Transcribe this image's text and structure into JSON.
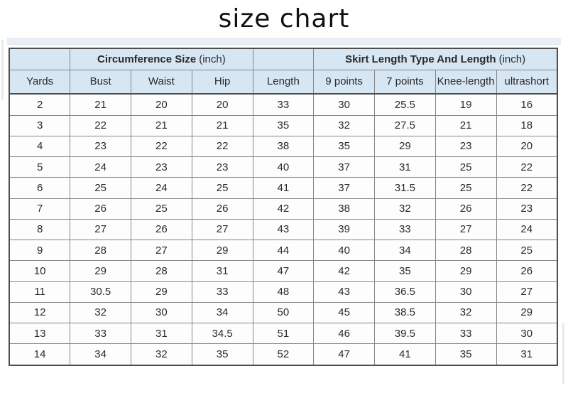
{
  "chart_data": {
    "type": "table",
    "title": "size chart",
    "group_headers": [
      {
        "title": "Circumference Size",
        "unit": "(inch)",
        "span": 3
      },
      {
        "title": "Skirt Length Type And Length",
        "unit": "(inch)",
        "span": 4
      }
    ],
    "columns": [
      "Yards",
      "Bust",
      "Waist",
      "Hip",
      "Length",
      "9 points",
      "7 points",
      "Knee-length",
      "ultrashort"
    ],
    "rows": [
      [
        "2",
        "21",
        "20",
        "20",
        "33",
        "30",
        "25.5",
        "19",
        "16"
      ],
      [
        "3",
        "22",
        "21",
        "21",
        "35",
        "32",
        "27.5",
        "21",
        "18"
      ],
      [
        "4",
        "23",
        "22",
        "22",
        "38",
        "35",
        "29",
        "23",
        "20"
      ],
      [
        "5",
        "24",
        "23",
        "23",
        "40",
        "37",
        "31",
        "25",
        "22"
      ],
      [
        "6",
        "25",
        "24",
        "25",
        "41",
        "37",
        "31.5",
        "25",
        "22"
      ],
      [
        "7",
        "26",
        "25",
        "26",
        "42",
        "38",
        "32",
        "26",
        "23"
      ],
      [
        "8",
        "27",
        "26",
        "27",
        "43",
        "39",
        "33",
        "27",
        "24"
      ],
      [
        "9",
        "28",
        "27",
        "29",
        "44",
        "40",
        "34",
        "28",
        "25"
      ],
      [
        "10",
        "29",
        "28",
        "31",
        "47",
        "42",
        "35",
        "29",
        "26"
      ],
      [
        "11",
        "30.5",
        "29",
        "33",
        "48",
        "43",
        "36.5",
        "30",
        "27"
      ],
      [
        "12",
        "32",
        "30",
        "34",
        "50",
        "45",
        "38.5",
        "32",
        "29"
      ],
      [
        "13",
        "33",
        "31",
        "34.5",
        "51",
        "46",
        "39.5",
        "33",
        "30"
      ],
      [
        "14",
        "34",
        "32",
        "35",
        "52",
        "47",
        "41",
        "35",
        "31"
      ]
    ]
  },
  "colors": {
    "header_bg": "#d7e6f3",
    "border": "#868686",
    "border_strong": "#4e4e4e",
    "text": "#2a2a2a",
    "page_bg": "#ffffff",
    "shadow_strip": "#e9eff5"
  }
}
